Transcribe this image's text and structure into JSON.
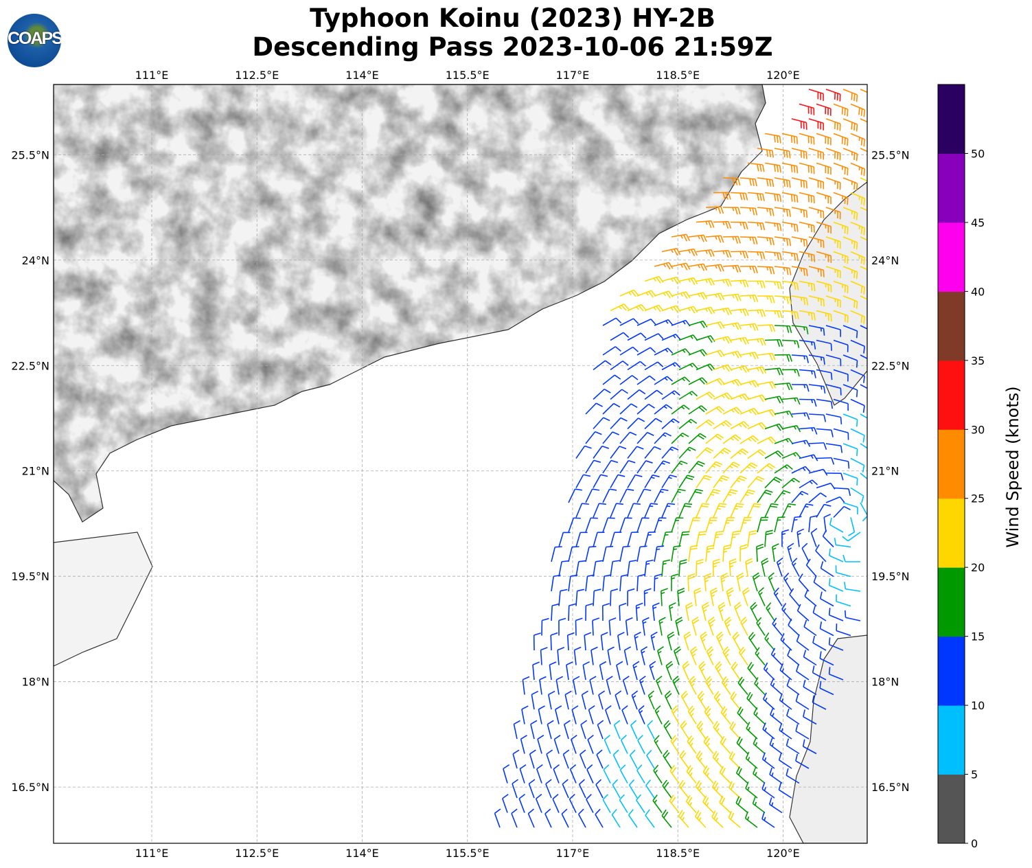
{
  "title": {
    "line1": "Typhoon Koinu (2023) HY-2B",
    "line2": "Descending Pass 2023-10-06 21:59Z"
  },
  "logo": {
    "text": "COAPS"
  },
  "map": {
    "lon_ticks": [
      "111°E",
      "112.5°E",
      "114°E",
      "115.5°E",
      "117°E",
      "118.5°E",
      "120°E"
    ],
    "lon_values": [
      111,
      112.5,
      114,
      115.5,
      117,
      118.5,
      120
    ],
    "lat_ticks": [
      "25.5°N",
      "24°N",
      "22.5°N",
      "21°N",
      "19.5°N",
      "18°N",
      "16.5°N"
    ],
    "lat_values": [
      25.5,
      24,
      22.5,
      21,
      19.5,
      18,
      16.5
    ],
    "extent": {
      "lon": [
        109.6,
        121.2
      ],
      "lat": [
        15.7,
        26.5
      ]
    },
    "gridlines": true
  },
  "colorbar": {
    "label": "Wind Speed (knots)",
    "ticks": [
      "0",
      "5",
      "10",
      "15",
      "20",
      "25",
      "30",
      "35",
      "40",
      "45",
      "50"
    ],
    "range": [
      0,
      55
    ],
    "colors": [
      "#555555",
      "#00bfff",
      "#0037ff",
      "#009900",
      "#ffd700",
      "#ff8c00",
      "#ff1010",
      "#7f3a28",
      "#ff00ee",
      "#8800bb",
      "#2a0060"
    ]
  }
}
